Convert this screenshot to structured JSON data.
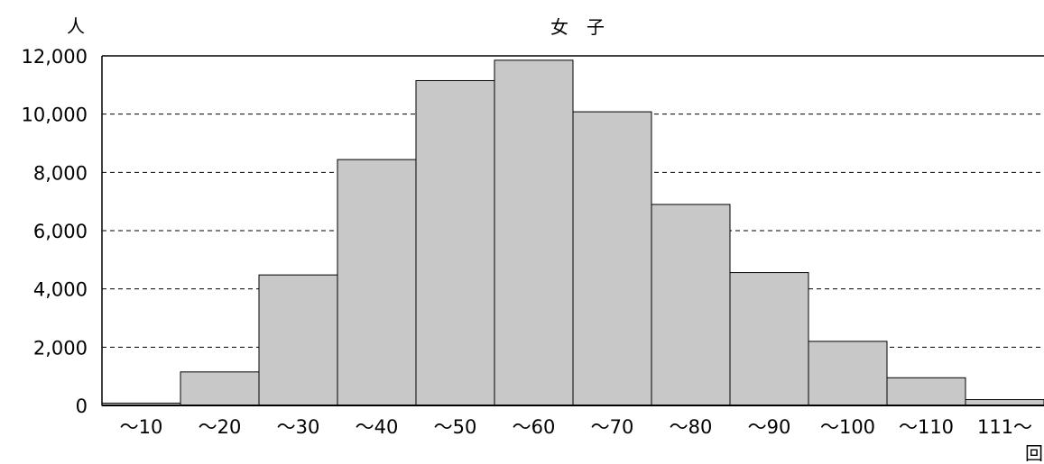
{
  "chart_data": {
    "type": "bar",
    "title": "女　子",
    "ylabel": "人",
    "xlabel": "回",
    "categories": [
      "～10",
      "～20",
      "～30",
      "～40",
      "～50",
      "～60",
      "～70",
      "～80",
      "～90",
      "～100",
      "～110",
      "111～"
    ],
    "values": [
      80,
      1150,
      4480,
      8440,
      11150,
      11850,
      10080,
      6900,
      4560,
      2200,
      950,
      200
    ],
    "ylim": [
      0,
      12000
    ],
    "yticks": [
      0,
      2000,
      4000,
      6000,
      8000,
      10000,
      12000
    ],
    "ytick_labels": [
      "0",
      "2,000",
      "4,000",
      "6,000",
      "8,000",
      "10,000",
      "12,000"
    ],
    "grid": "horizontal-dashed",
    "bar_color": "#c8c8c8",
    "edge_color": "#000000"
  }
}
